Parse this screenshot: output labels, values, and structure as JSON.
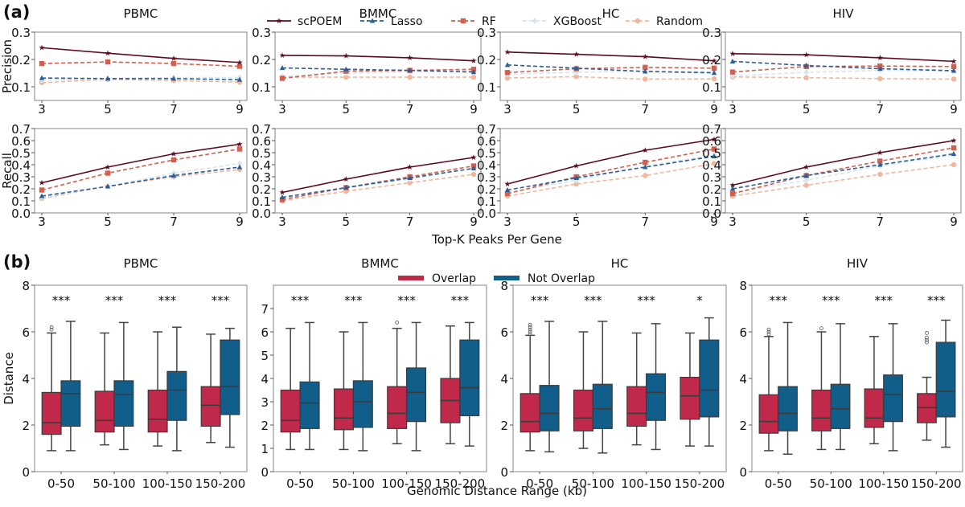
{
  "panel_labels": {
    "a": "(a)",
    "b": "(b)"
  },
  "legend_a": [
    {
      "name": "scPOEM",
      "color": "#5c0a1e",
      "marker": "star",
      "dash": false
    },
    {
      "name": "Lasso",
      "color": "#2a5f96",
      "marker": "triangle",
      "dash": true
    },
    {
      "name": "RF",
      "color": "#d1604f",
      "marker": "square",
      "dash": true
    },
    {
      "name": "XGBoost",
      "color": "#d6e6f2",
      "marker": "diamond",
      "dash": true
    },
    {
      "name": "Random",
      "color": "#f2b79b",
      "marker": "circle",
      "dash": true
    }
  ],
  "legend_b": [
    {
      "name": "Overlap",
      "color": "#c0294a"
    },
    {
      "name": "Not Overlap",
      "color": "#125e8a"
    }
  ],
  "xlabel_a": "Top-K Peaks Per Gene",
  "xlabel_b": "Genomic Distance Range (kb)",
  "chart_data": [
    {
      "type": "line",
      "panel": "a",
      "xlabel": "Top-K Peaks Per Gene",
      "x": [
        3,
        5,
        7,
        9
      ],
      "metrics": [
        {
          "ylabel": "Precision",
          "ylim": [
            0.05,
            0.3
          ],
          "yticks": [
            "0.1",
            "0.2",
            "0.3"
          ]
        },
        {
          "ylabel": "Recall",
          "ylim": [
            0.0,
            0.7
          ],
          "yticks": [
            "0.0",
            "0.1",
            "0.2",
            "0.3",
            "0.4",
            "0.5",
            "0.6",
            "0.7"
          ]
        }
      ],
      "datasets": [
        {
          "title": "PBMC",
          "precision": {
            "scPOEM": [
              0.243,
              0.223,
              0.204,
              0.189
            ],
            "Lasso": [
              0.132,
              0.13,
              0.13,
              0.126
            ],
            "RF": [
              0.185,
              0.191,
              0.185,
              0.175
            ],
            "XGBoost": [
              0.124,
              0.13,
              0.134,
              0.134
            ],
            "Random": [
              0.115,
              0.127,
              0.123,
              0.117
            ]
          },
          "recall": {
            "scPOEM": [
              0.25,
              0.38,
              0.49,
              0.57
            ],
            "Lasso": [
              0.14,
              0.22,
              0.31,
              0.38
            ],
            "RF": [
              0.19,
              0.33,
              0.44,
              0.53
            ],
            "XGBoost": [
              0.13,
              0.22,
              0.33,
              0.41
            ],
            "Random": [
              0.12,
              0.22,
              0.3,
              0.36
            ]
          }
        },
        {
          "title": "BMMC",
          "precision": {
            "scPOEM": [
              0.215,
              0.213,
              0.206,
              0.195
            ],
            "Lasso": [
              0.169,
              0.164,
              0.16,
              0.154
            ],
            "RF": [
              0.131,
              0.157,
              0.16,
              0.164
            ],
            "XGBoost": [
              0.138,
              0.15,
              0.155,
              0.158
            ],
            "Random": [
              0.135,
              0.135,
              0.135,
              0.135
            ]
          },
          "recall": {
            "scPOEM": [
              0.17,
              0.28,
              0.38,
              0.46
            ],
            "Lasso": [
              0.13,
              0.21,
              0.29,
              0.37
            ],
            "RF": [
              0.11,
              0.21,
              0.3,
              0.39
            ],
            "XGBoost": [
              0.12,
              0.21,
              0.28,
              0.37
            ],
            "Random": [
              0.1,
              0.18,
              0.25,
              0.32
            ]
          }
        },
        {
          "title": "HC",
          "precision": {
            "scPOEM": [
              0.227,
              0.219,
              0.21,
              0.195
            ],
            "Lasso": [
              0.18,
              0.168,
              0.156,
              0.151
            ],
            "RF": [
              0.152,
              0.166,
              0.171,
              0.168
            ],
            "XGBoost": [
              0.146,
              0.153,
              0.158,
              0.155
            ],
            "Random": [
              0.132,
              0.137,
              0.128,
              0.129
            ]
          },
          "recall": {
            "scPOEM": [
              0.24,
              0.39,
              0.52,
              0.61
            ],
            "Lasso": [
              0.19,
              0.29,
              0.38,
              0.47
            ],
            "RF": [
              0.16,
              0.3,
              0.42,
              0.53
            ],
            "XGBoost": [
              0.17,
              0.27,
              0.39,
              0.48
            ],
            "Random": [
              0.14,
              0.24,
              0.31,
              0.41
            ]
          }
        },
        {
          "title": "HIV",
          "precision": {
            "scPOEM": [
              0.221,
              0.217,
              0.206,
              0.193
            ],
            "Lasso": [
              0.193,
              0.178,
              0.166,
              0.159
            ],
            "RF": [
              0.154,
              0.174,
              0.176,
              0.174
            ],
            "XGBoost": [
              0.14,
              0.153,
              0.16,
              0.157
            ],
            "Random": [
              0.136,
              0.133,
              0.13,
              0.128
            ]
          },
          "recall": {
            "scPOEM": [
              0.23,
              0.38,
              0.5,
              0.6
            ],
            "Lasso": [
              0.2,
              0.31,
              0.4,
              0.49
            ],
            "RF": [
              0.16,
              0.31,
              0.43,
              0.54
            ],
            "XGBoost": [
              0.17,
              0.27,
              0.39,
              0.48
            ],
            "Random": [
              0.14,
              0.23,
              0.32,
              0.4
            ]
          }
        }
      ]
    },
    {
      "type": "box",
      "panel": "b",
      "xlabel": "Genomic Distance Range (kb)",
      "ylabel": "Distance",
      "categories": [
        "0-50",
        "50-100",
        "100-150",
        "150-200"
      ],
      "series_names": [
        "Overlap",
        "Not Overlap"
      ],
      "datasets": [
        {
          "title": "PBMC",
          "ylim": [
            0,
            8
          ],
          "yticks": [
            0,
            2,
            4,
            6,
            8
          ],
          "show_ylabel": true,
          "significance": [
            "***",
            "***",
            "***",
            "***"
          ],
          "boxes": [
            [
              {
                "min": 0.9,
                "q1": 1.6,
                "median": 2.1,
                "q3": 3.4,
                "max": 5.95,
                "outliers": [
                  6.1,
                  6.2
                ]
              },
              {
                "min": 0.9,
                "q1": 1.95,
                "median": 3.35,
                "q3": 3.9,
                "max": 6.45,
                "outliers": []
              }
            ],
            [
              {
                "min": 1.15,
                "q1": 1.7,
                "median": 2.2,
                "q3": 3.45,
                "max": 5.95,
                "outliers": []
              },
              {
                "min": 0.95,
                "q1": 1.95,
                "median": 3.3,
                "q3": 3.9,
                "max": 6.4,
                "outliers": []
              }
            ],
            [
              {
                "min": 1.1,
                "q1": 1.7,
                "median": 2.25,
                "q3": 3.5,
                "max": 6.0,
                "outliers": []
              },
              {
                "min": 0.9,
                "q1": 2.2,
                "median": 3.5,
                "q3": 4.3,
                "max": 6.2,
                "outliers": []
              }
            ],
            [
              {
                "min": 1.25,
                "q1": 1.95,
                "median": 2.85,
                "q3": 3.65,
                "max": 5.9,
                "outliers": []
              },
              {
                "min": 1.05,
                "q1": 2.45,
                "median": 3.65,
                "q3": 5.65,
                "max": 6.15,
                "outliers": []
              }
            ]
          ]
        },
        {
          "title": "BMMC",
          "ylim": [
            0,
            8
          ],
          "yticks": [
            0,
            1,
            2,
            3,
            4,
            5,
            6,
            7
          ],
          "show_ylabel": false,
          "significance": [
            "***",
            "***",
            "***",
            "***"
          ],
          "boxes": [
            [
              {
                "min": 0.95,
                "q1": 1.7,
                "median": 2.2,
                "q3": 3.5,
                "max": 6.15,
                "outliers": []
              },
              {
                "min": 0.95,
                "q1": 1.85,
                "median": 2.95,
                "q3": 3.85,
                "max": 6.4,
                "outliers": []
              }
            ],
            [
              {
                "min": 0.95,
                "q1": 1.8,
                "median": 2.3,
                "q3": 3.55,
                "max": 6.0,
                "outliers": []
              },
              {
                "min": 0.9,
                "q1": 1.9,
                "median": 3.0,
                "q3": 3.9,
                "max": 6.4,
                "outliers": []
              }
            ],
            [
              {
                "min": 1.2,
                "q1": 1.85,
                "median": 2.5,
                "q3": 3.65,
                "max": 6.15,
                "outliers": [
                  6.4
                ]
              },
              {
                "min": 0.9,
                "q1": 2.15,
                "median": 3.4,
                "q3": 4.45,
                "max": 6.4,
                "outliers": []
              }
            ],
            [
              {
                "min": 1.2,
                "q1": 2.1,
                "median": 3.05,
                "q3": 4.0,
                "max": 6.25,
                "outliers": []
              },
              {
                "min": 1.1,
                "q1": 2.4,
                "median": 3.6,
                "q3": 5.65,
                "max": 6.4,
                "outliers": []
              }
            ]
          ]
        },
        {
          "title": "HC",
          "ylim": [
            0,
            8
          ],
          "yticks": [
            0,
            2,
            4,
            6,
            8
          ],
          "show_ylabel": false,
          "significance": [
            "***",
            "***",
            "***",
            "*"
          ],
          "boxes": [
            [
              {
                "min": 0.9,
                "q1": 1.7,
                "median": 2.15,
                "q3": 3.35,
                "max": 5.85,
                "outliers": [
                  5.9,
                  6.0,
                  6.1,
                  6.2,
                  6.3
                ]
              },
              {
                "min": 0.85,
                "q1": 1.75,
                "median": 2.5,
                "q3": 3.7,
                "max": 6.45,
                "outliers": []
              }
            ],
            [
              {
                "min": 1.0,
                "q1": 1.75,
                "median": 2.3,
                "q3": 3.5,
                "max": 6.0,
                "outliers": []
              },
              {
                "min": 0.8,
                "q1": 1.85,
                "median": 2.7,
                "q3": 3.75,
                "max": 6.45,
                "outliers": []
              }
            ],
            [
              {
                "min": 1.15,
                "q1": 1.95,
                "median": 2.5,
                "q3": 3.65,
                "max": 5.95,
                "outliers": []
              },
              {
                "min": 0.95,
                "q1": 2.2,
                "median": 3.4,
                "q3": 4.2,
                "max": 6.35,
                "outliers": []
              }
            ],
            [
              {
                "min": 1.1,
                "q1": 2.25,
                "median": 3.25,
                "q3": 4.05,
                "max": 5.95,
                "outliers": []
              },
              {
                "min": 1.1,
                "q1": 2.35,
                "median": 3.5,
                "q3": 5.65,
                "max": 6.6,
                "outliers": []
              }
            ]
          ]
        },
        {
          "title": "HIV",
          "ylim": [
            0,
            8
          ],
          "yticks": [
            0,
            2,
            4,
            6,
            8
          ],
          "show_ylabel": false,
          "significance": [
            "***",
            "***",
            "***",
            "***"
          ],
          "boxes": [
            [
              {
                "min": 0.9,
                "q1": 1.65,
                "median": 2.15,
                "q3": 3.3,
                "max": 5.8,
                "outliers": [
                  5.9,
                  6.0,
                  6.1
                ]
              },
              {
                "min": 0.75,
                "q1": 1.75,
                "median": 2.5,
                "q3": 3.65,
                "max": 6.4,
                "outliers": []
              }
            ],
            [
              {
                "min": 0.95,
                "q1": 1.75,
                "median": 2.3,
                "q3": 3.5,
                "max": 6.0,
                "outliers": [
                  6.15
                ]
              },
              {
                "min": 0.95,
                "q1": 1.85,
                "median": 2.7,
                "q3": 3.75,
                "max": 6.35,
                "outliers": []
              }
            ],
            [
              {
                "min": 1.2,
                "q1": 1.9,
                "median": 2.3,
                "q3": 3.55,
                "max": 5.8,
                "outliers": []
              },
              {
                "min": 0.9,
                "q1": 2.15,
                "median": 3.3,
                "q3": 4.15,
                "max": 6.35,
                "outliers": []
              }
            ],
            [
              {
                "min": 1.35,
                "q1": 2.1,
                "median": 2.75,
                "q3": 3.35,
                "max": 4.05,
                "outliers": [
                  5.55,
                  5.65,
                  5.75,
                  5.95
                ]
              },
              {
                "min": 1.05,
                "q1": 2.35,
                "median": 3.45,
                "q3": 5.55,
                "max": 6.5,
                "outliers": []
              }
            ]
          ]
        }
      ]
    }
  ]
}
